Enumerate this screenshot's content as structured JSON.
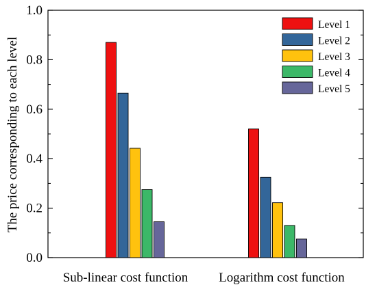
{
  "chart_data": {
    "type": "bar",
    "categories": [
      "Sub-linear cost function",
      "Logarithm cost function"
    ],
    "series": [
      {
        "name": "Level 1",
        "color": "#ee1111",
        "values": [
          0.87,
          0.52
        ]
      },
      {
        "name": "Level 2",
        "color": "#336699",
        "values": [
          0.665,
          0.325
        ]
      },
      {
        "name": "Level 3",
        "color": "#ffc20e",
        "values": [
          0.442,
          0.222
        ]
      },
      {
        "name": "Level 4",
        "color": "#3cb868",
        "values": [
          0.275,
          0.13
        ]
      },
      {
        "name": "Level 5",
        "color": "#66669a",
        "values": [
          0.145,
          0.075
        ]
      }
    ],
    "xlabel": "",
    "ylabel": "The price corresponding to each level",
    "ylim": [
      0,
      1.0
    ],
    "yticks": [
      "0.0",
      "0.2",
      "0.4",
      "0.6",
      "0.8",
      "1.0"
    ],
    "grid": false,
    "legend_position": "top-right"
  }
}
